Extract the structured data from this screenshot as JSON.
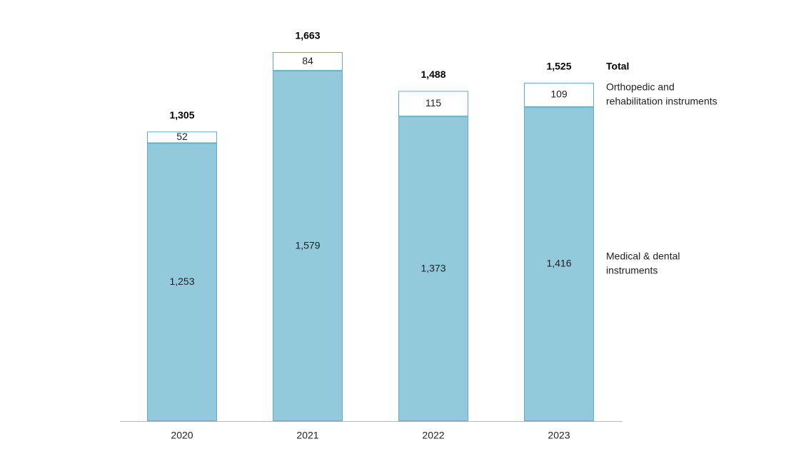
{
  "chart_data": {
    "type": "bar",
    "stacked": true,
    "categories": [
      "2020",
      "2021",
      "2022",
      "2023"
    ],
    "series": [
      {
        "name": "Medical & dental instruments",
        "values": [
          1253,
          1579,
          1373,
          1416
        ],
        "labels": [
          "1,253",
          "1,579",
          "1,373",
          "1,416"
        ],
        "color": "#92CADB",
        "stroke": "#5AAFC3"
      },
      {
        "name": "Orthopedic and rehabilitation instruments",
        "values": [
          52,
          84,
          115,
          109
        ],
        "labels": [
          "52",
          "84",
          "115",
          "109"
        ],
        "color": "#FFFFFF",
        "stroke": "#5AAFC3"
      }
    ],
    "totals": [
      1305,
      1663,
      1488,
      1525
    ],
    "total_labels": [
      "1,305",
      "1,663",
      "1,488",
      "1,525"
    ],
    "title": "",
    "xlabel": "",
    "ylabel": "",
    "ylim": [
      0,
      1663
    ],
    "grid": false,
    "legend": {
      "placement": "right",
      "title": "Total",
      "items": [
        {
          "lines": [
            "Orthopedic and",
            "rehabilitation instruments"
          ]
        },
        {
          "lines": [
            "Medical & dental",
            "instruments"
          ]
        }
      ]
    }
  }
}
